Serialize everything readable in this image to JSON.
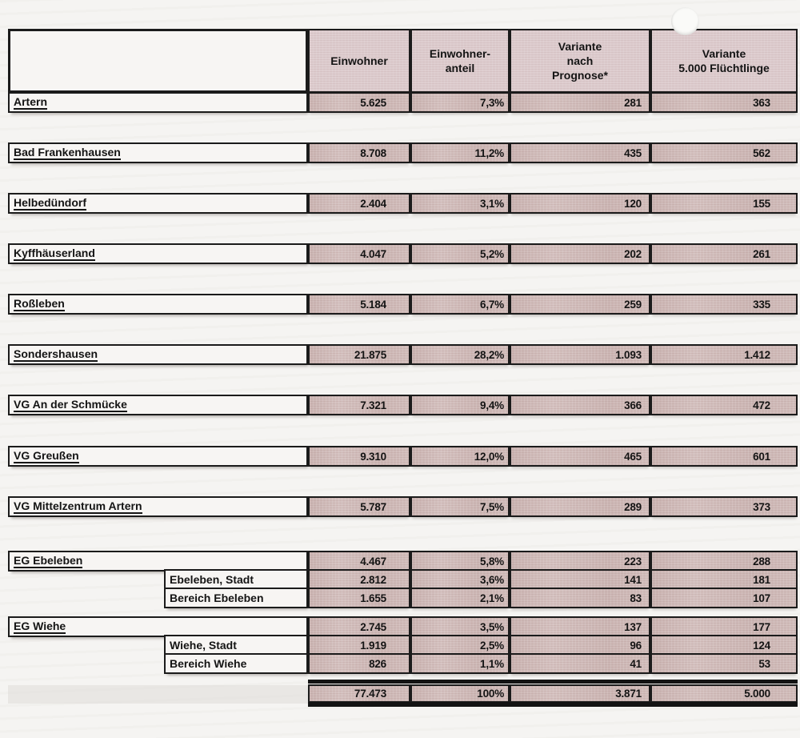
{
  "table": {
    "columns": [
      "Einwohner",
      "Einwohner-\nanteil",
      "Variante\nnach\nPrognose*",
      "Variante\n5.000 Flüchtlinge"
    ],
    "rows": [
      {
        "name": "Artern",
        "einwohner": "5.625",
        "anteil": "7,3%",
        "prognose": "281",
        "fluechtlinge": "363",
        "sub": false
      },
      {
        "name": "Bad Frankenhausen",
        "einwohner": "8.708",
        "anteil": "11,2%",
        "prognose": "435",
        "fluechtlinge": "562",
        "sub": false
      },
      {
        "name": "Helbedündorf",
        "einwohner": "2.404",
        "anteil": "3,1%",
        "prognose": "120",
        "fluechtlinge": "155",
        "sub": false
      },
      {
        "name": "Kyffhäuserland",
        "einwohner": "4.047",
        "anteil": "5,2%",
        "prognose": "202",
        "fluechtlinge": "261",
        "sub": false
      },
      {
        "name": "Roßleben",
        "einwohner": "5.184",
        "anteil": "6,7%",
        "prognose": "259",
        "fluechtlinge": "335",
        "sub": false
      },
      {
        "name": "Sondershausen",
        "einwohner": "21.875",
        "anteil": "28,2%",
        "prognose": "1.093",
        "fluechtlinge": "1.412",
        "sub": false
      },
      {
        "name": "VG An der Schmücke",
        "einwohner": "7.321",
        "anteil": "9,4%",
        "prognose": "366",
        "fluechtlinge": "472",
        "sub": false
      },
      {
        "name": "VG Greußen",
        "einwohner": "9.310",
        "anteil": "12,0%",
        "prognose": "465",
        "fluechtlinge": "601",
        "sub": false
      },
      {
        "name": "VG Mittelzentrum Artern",
        "einwohner": "5.787",
        "anteil": "7,5%",
        "prognose": "289",
        "fluechtlinge": "373",
        "sub": false
      },
      {
        "name": "EG Ebeleben",
        "einwohner": "4.467",
        "anteil": "5,8%",
        "prognose": "223",
        "fluechtlinge": "288",
        "sub": false
      },
      {
        "name": "Ebeleben, Stadt",
        "einwohner": "2.812",
        "anteil": "3,6%",
        "prognose": "141",
        "fluechtlinge": "181",
        "sub": true
      },
      {
        "name": "Bereich Ebeleben",
        "einwohner": "1.655",
        "anteil": "2,1%",
        "prognose": "83",
        "fluechtlinge": "107",
        "sub": true
      },
      {
        "name": "EG Wiehe",
        "einwohner": "2.745",
        "anteil": "3,5%",
        "prognose": "137",
        "fluechtlinge": "177",
        "sub": false
      },
      {
        "name": "Wiehe, Stadt",
        "einwohner": "1.919",
        "anteil": "2,5%",
        "prognose": "96",
        "fluechtlinge": "124",
        "sub": true
      },
      {
        "name": "Bereich Wiehe",
        "einwohner": "826",
        "anteil": "1,1%",
        "prognose": "41",
        "fluechtlinge": "53",
        "sub": true
      }
    ],
    "total": {
      "einwohner": "77.473",
      "anteil": "100%",
      "prognose": "3.871",
      "fluechtlinge": "5.000"
    }
  }
}
